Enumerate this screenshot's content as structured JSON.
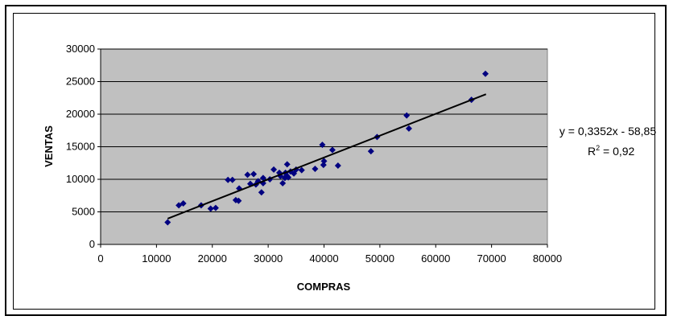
{
  "chart_data": {
    "type": "scatter",
    "xlabel": "COMPRAS",
    "ylabel": "VENTAS",
    "xlim": [
      0,
      80000
    ],
    "ylim": [
      0,
      30000
    ],
    "x_ticks": [
      0,
      10000,
      20000,
      30000,
      40000,
      50000,
      60000,
      70000,
      80000
    ],
    "y_ticks": [
      0,
      5000,
      10000,
      15000,
      20000,
      25000,
      30000
    ],
    "grid": "horizontal",
    "plot_background": "#c0c0c0",
    "marker_color": "#000080",
    "trendline": {
      "slope": 0.3352,
      "intercept": -58.85,
      "x_range": [
        12000,
        69000
      ],
      "equation": "y = 0,3352x - 58,85",
      "r2_prefix": "R",
      "r2_sup": "2",
      "r2_suffix": " = 0,92"
    },
    "points": [
      [
        12000,
        3400
      ],
      [
        14000,
        6000
      ],
      [
        14800,
        6300
      ],
      [
        18000,
        6000
      ],
      [
        19700,
        5500
      ],
      [
        20600,
        5600
      ],
      [
        22800,
        9900
      ],
      [
        23600,
        9900
      ],
      [
        24200,
        6800
      ],
      [
        24700,
        6700
      ],
      [
        24800,
        8600
      ],
      [
        26300,
        10700
      ],
      [
        26800,
        9300
      ],
      [
        27400,
        10800
      ],
      [
        27800,
        9200
      ],
      [
        28200,
        9700
      ],
      [
        28800,
        8000
      ],
      [
        29100,
        10200
      ],
      [
        29100,
        9400
      ],
      [
        30300,
        10000
      ],
      [
        31000,
        11500
      ],
      [
        32000,
        11000
      ],
      [
        32200,
        10500
      ],
      [
        32600,
        9400
      ],
      [
        33000,
        10200
      ],
      [
        33100,
        11000
      ],
      [
        33300,
        10600
      ],
      [
        33400,
        12300
      ],
      [
        33600,
        10300
      ],
      [
        34000,
        11200
      ],
      [
        34600,
        10900
      ],
      [
        35000,
        11500
      ],
      [
        36000,
        11400
      ],
      [
        38400,
        11600
      ],
      [
        39700,
        15300
      ],
      [
        39900,
        12200
      ],
      [
        40000,
        12800
      ],
      [
        41500,
        14500
      ],
      [
        42500,
        12100
      ],
      [
        48400,
        14300
      ],
      [
        49500,
        16500
      ],
      [
        54800,
        19800
      ],
      [
        55200,
        17800
      ],
      [
        66400,
        22200
      ],
      [
        68900,
        26200
      ]
    ]
  }
}
